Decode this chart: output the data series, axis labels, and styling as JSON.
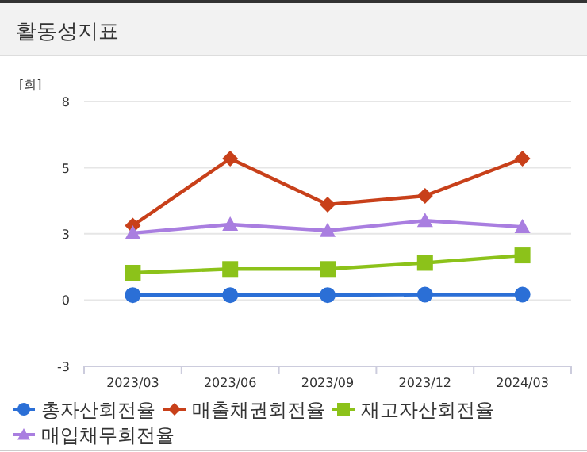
{
  "chart_data": {
    "type": "line",
    "title": "활동성지표",
    "ylabel": "[회]",
    "categories": [
      "2023/03",
      "2023/06",
      "2023/09",
      "2023/12",
      "2024/03"
    ],
    "series": [
      {
        "name": "총자산회전율",
        "color": "#2b6fd6",
        "marker": "circle",
        "values": [
          0.2,
          0.2,
          0.2,
          0.22,
          0.22
        ]
      },
      {
        "name": "매출채권회전율",
        "color": "#c8401a",
        "marker": "diamond",
        "values": [
          3.0,
          5.7,
          3.85,
          4.2,
          5.7
        ]
      },
      {
        "name": "재고자산회전율",
        "color": "#8cc21a",
        "marker": "square",
        "values": [
          1.1,
          1.25,
          1.25,
          1.5,
          1.8
        ]
      },
      {
        "name": "매입채무회전율",
        "color": "#a97ee0",
        "marker": "triangle",
        "values": [
          2.7,
          3.05,
          2.8,
          3.2,
          2.95
        ]
      }
    ],
    "ylim": [
      -2.67,
      8
    ],
    "yticks": [
      {
        "value": -2.67,
        "label": "-3"
      },
      0,
      {
        "value": 2.67,
        "label": "3"
      },
      {
        "value": 5.33,
        "label": "5"
      },
      8
    ],
    "grid": "y",
    "legend": "bottom"
  }
}
